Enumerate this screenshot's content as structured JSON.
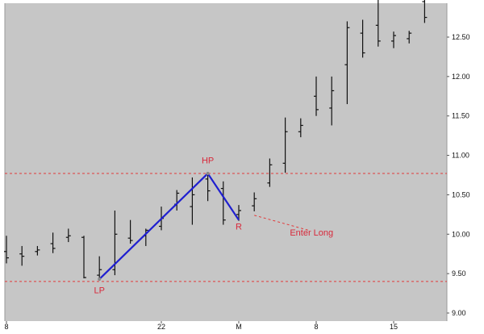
{
  "colors": {
    "background": "#c6c6c6",
    "bar": "#111111",
    "pattern_line": "#1f1fd0",
    "level_line": "#e23a3a",
    "annotation": "#d8283a",
    "axis_text": "#111111"
  },
  "chart_data": {
    "type": "ohlc",
    "title": "",
    "xlabel": "",
    "ylabel": "",
    "ylim": [
      8.97,
      13.1
    ],
    "y_ticks": [
      "9.00",
      "9.50",
      "10.00",
      "10.50",
      "11.00",
      "11.50",
      "12.00",
      "12.50"
    ],
    "y_tick_values": [
      9.0,
      9.5,
      10.0,
      10.5,
      11.0,
      11.5,
      12.0,
      12.5
    ],
    "x_ticks": [
      {
        "label": "8",
        "bar": 0
      },
      {
        "label": "22",
        "bar": 10
      },
      {
        "label": "M",
        "bar": 15
      },
      {
        "label": "8",
        "bar": 20
      },
      {
        "label": "15",
        "bar": 25
      }
    ],
    "bars": [
      {
        "high": 9.98,
        "low": 9.63,
        "open": 9.78,
        "close": 9.7
      },
      {
        "high": 9.85,
        "low": 9.6,
        "open": 9.75,
        "close": 9.72
      },
      {
        "high": 9.85,
        "low": 9.73,
        "open": 9.78,
        "close": 9.8
      },
      {
        "high": 10.02,
        "low": 9.76,
        "open": 9.88,
        "close": 9.82
      },
      {
        "high": 10.07,
        "low": 9.9,
        "open": 9.96,
        "close": 9.98
      },
      {
        "high": 9.98,
        "low": 9.44,
        "open": 9.96,
        "close": 9.45
      },
      {
        "high": 9.72,
        "low": 9.41,
        "open": 9.48,
        "close": 9.55
      },
      {
        "high": 10.3,
        "low": 9.48,
        "open": 9.55,
        "close": 10.0
      },
      {
        "high": 10.18,
        "low": 9.88,
        "open": 9.95,
        "close": 9.92
      },
      {
        "high": 10.07,
        "low": 9.85,
        "open": 9.98,
        "close": 10.05
      },
      {
        "high": 10.35,
        "low": 10.05,
        "open": 10.1,
        "close": 10.2
      },
      {
        "high": 10.56,
        "low": 10.3,
        "open": 10.38,
        "close": 10.52
      },
      {
        "high": 10.72,
        "low": 10.12,
        "open": 10.35,
        "close": 10.5
      },
      {
        "high": 10.79,
        "low": 10.42,
        "open": 10.7,
        "close": 10.55
      },
      {
        "high": 10.67,
        "low": 10.12,
        "open": 10.58,
        "close": 10.18
      },
      {
        "high": 10.37,
        "low": 10.17,
        "open": 10.25,
        "close": 10.3
      },
      {
        "high": 10.53,
        "low": 10.29,
        "open": 10.36,
        "close": 10.45
      },
      {
        "high": 10.96,
        "low": 10.6,
        "open": 10.65,
        "close": 10.88
      },
      {
        "high": 11.48,
        "low": 10.78,
        "open": 10.9,
        "close": 11.3
      },
      {
        "high": 11.47,
        "low": 11.23,
        "open": 11.3,
        "close": 11.38
      },
      {
        "high": 12.0,
        "low": 11.5,
        "open": 11.75,
        "close": 11.58
      },
      {
        "high": 12.0,
        "low": 11.38,
        "open": 11.6,
        "close": 11.82
      },
      {
        "high": 12.7,
        "low": 11.65,
        "open": 12.15,
        "close": 12.62
      },
      {
        "high": 12.72,
        "low": 12.24,
        "open": 12.55,
        "close": 12.3
      },
      {
        "high": 13.1,
        "low": 12.38,
        "open": 12.65,
        "close": 12.45
      },
      {
        "high": 12.57,
        "low": 12.36,
        "open": 12.45,
        "close": 12.52
      },
      {
        "high": 12.58,
        "low": 12.42,
        "open": 12.48,
        "close": 12.55
      },
      {
        "high": 13.1,
        "low": 12.68,
        "open": 12.95,
        "close": 12.75
      }
    ],
    "levels": [
      10.77,
      9.4
    ],
    "pattern": {
      "points": [
        {
          "bar": 6,
          "price": 9.43
        },
        {
          "bar": 13,
          "price": 10.77
        },
        {
          "bar": 15,
          "price": 10.18
        }
      ]
    },
    "annotations": [
      {
        "text": "LP",
        "bar": 6,
        "price": 9.25
      },
      {
        "text": "HP",
        "bar": 13,
        "price": 10.9
      },
      {
        "text": "R",
        "bar": 15,
        "price": 10.06
      },
      {
        "text": "Enter Long",
        "bar": 19.7,
        "price": 9.98
      }
    ],
    "entry_arrow": {
      "from": {
        "bar": 16,
        "price": 10.24
      },
      "to": {
        "bar": 19.5,
        "price": 10.05
      }
    }
  }
}
